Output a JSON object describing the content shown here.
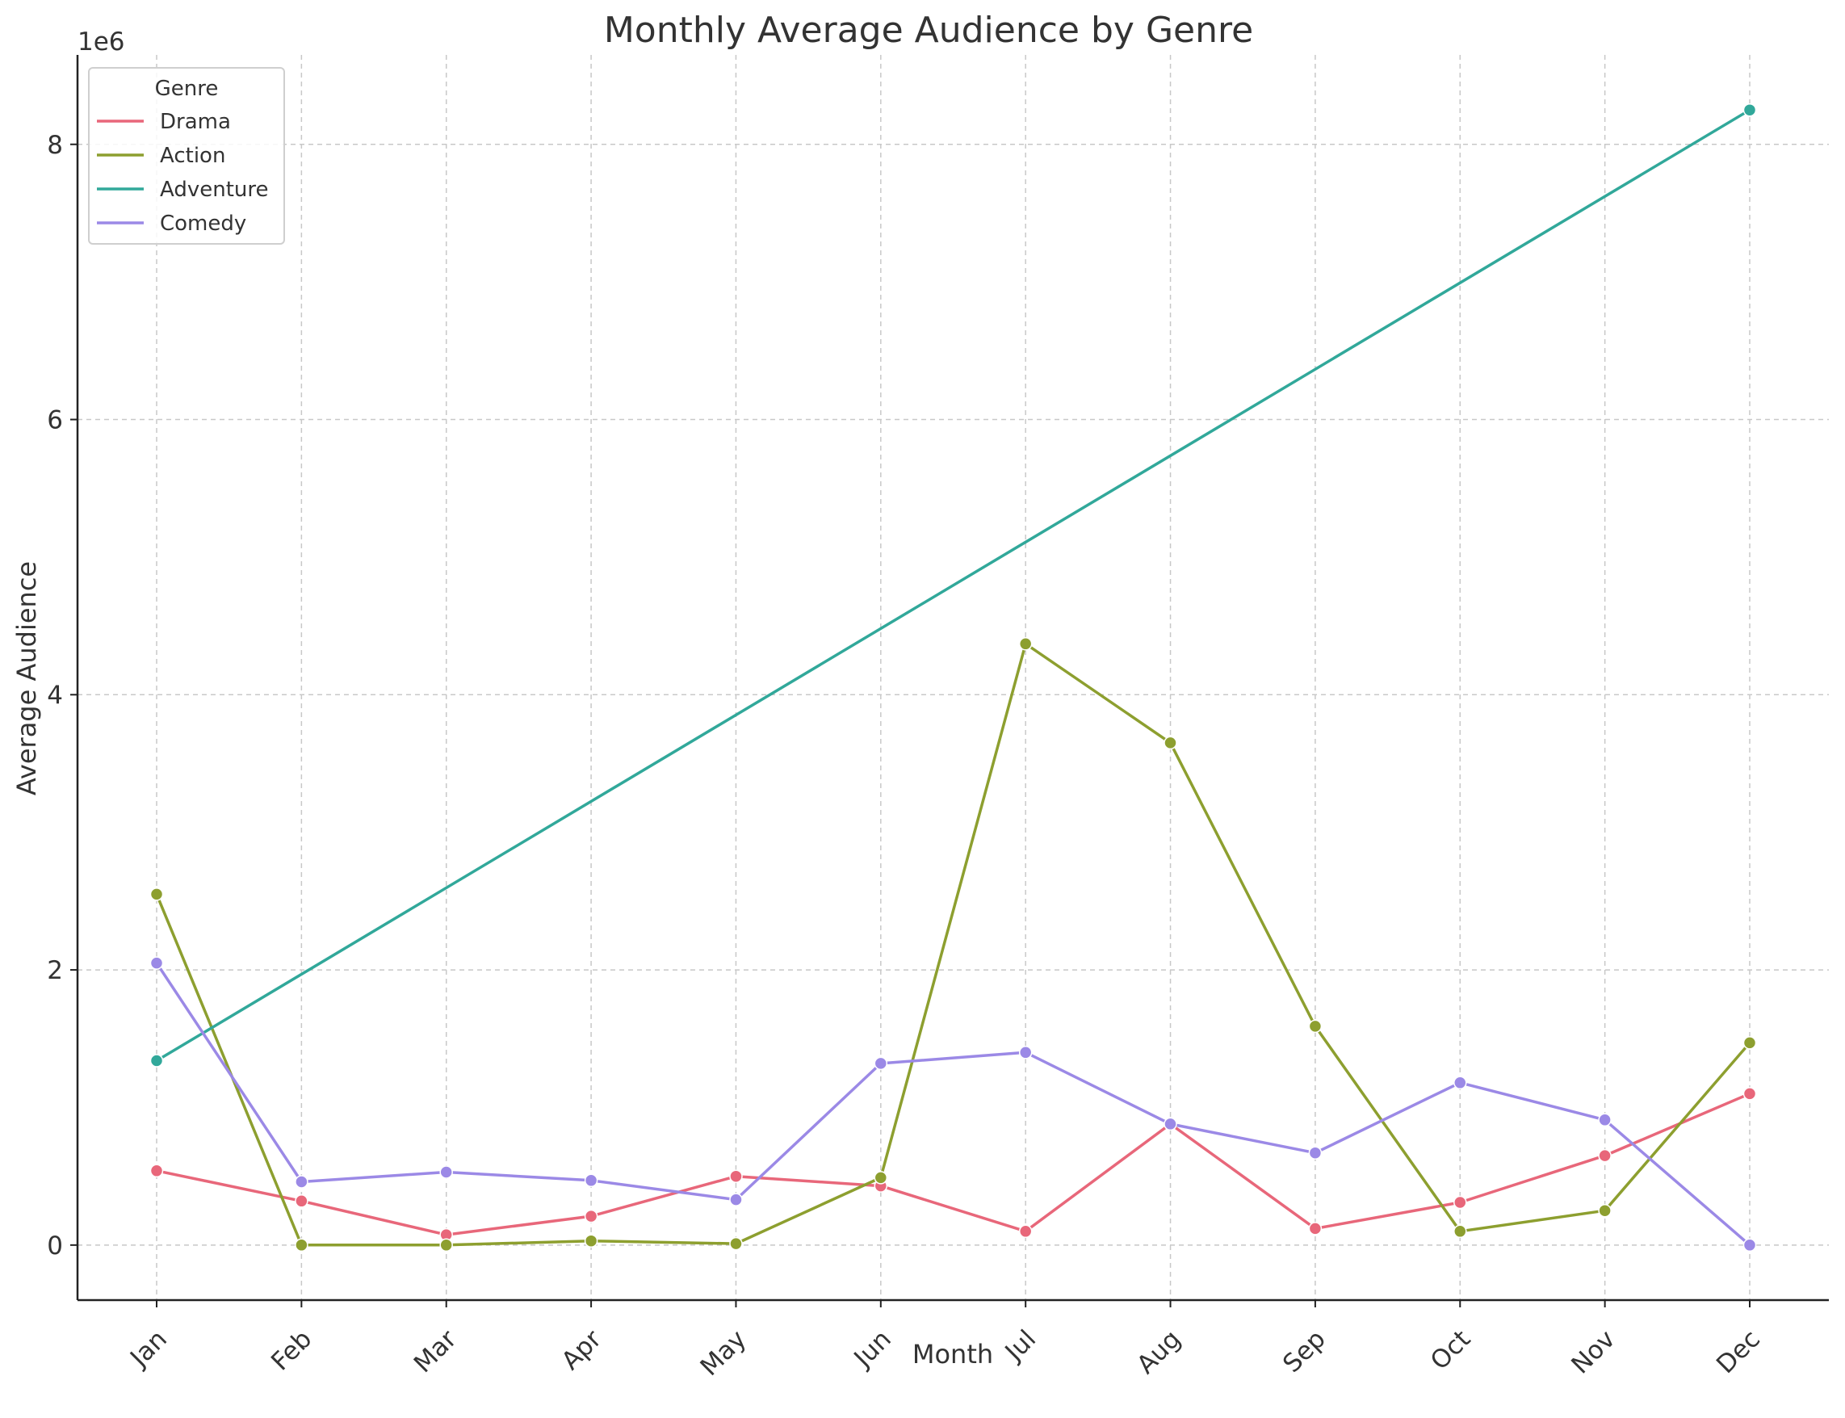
{
  "chart_data": {
    "type": "line",
    "title": "Monthly Average Audience by Genre",
    "xlabel": "Month",
    "ylabel": "Average Audience",
    "y_offset_label": "1e6",
    "categories": [
      "Jan",
      "Feb",
      "Mar",
      "Apr",
      "May",
      "Jun",
      "Jul",
      "Aug",
      "Sep",
      "Oct",
      "Nov",
      "Dec"
    ],
    "y_ticks": [
      0,
      2000000,
      4000000,
      6000000,
      8000000
    ],
    "y_tick_labels": [
      "0",
      "2",
      "4",
      "6",
      "8"
    ],
    "ylim": [
      -400000,
      8650000
    ],
    "grid": true,
    "legend": {
      "title": "Genre",
      "placement": "top-left"
    },
    "series": [
      {
        "name": "Drama",
        "color": "#e8677a",
        "values": [
          540000,
          320000,
          75000,
          210000,
          500000,
          430000,
          100000,
          880000,
          120000,
          310000,
          650000,
          1100000
        ]
      },
      {
        "name": "Action",
        "color": "#8d9f2f",
        "values": [
          2550000,
          0,
          0,
          30000,
          10000,
          490000,
          4370000,
          3650000,
          1590000,
          100000,
          250000,
          1470000
        ]
      },
      {
        "name": "Adventure",
        "color": "#31a89a",
        "values": [
          1340000,
          null,
          null,
          null,
          null,
          null,
          null,
          null,
          null,
          null,
          null,
          8250000
        ]
      },
      {
        "name": "Comedy",
        "color": "#9b89e6",
        "values": [
          2050000,
          460000,
          530000,
          470000,
          330000,
          1320000,
          1400000,
          880000,
          670000,
          1180000,
          910000,
          0
        ]
      }
    ]
  }
}
